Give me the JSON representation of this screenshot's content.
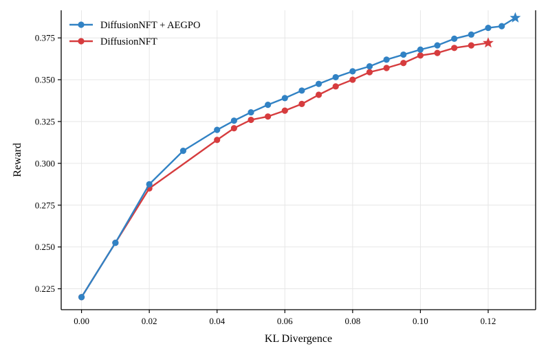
{
  "chart_data": {
    "type": "line",
    "title": "",
    "xlabel": "KL Divergence",
    "ylabel": "Reward",
    "xlim": [
      -0.006,
      0.134
    ],
    "ylim": [
      0.2125,
      0.3915
    ],
    "grid": true,
    "legend_position": "top-left",
    "x_ticks": [
      0.0,
      0.02,
      0.04,
      0.06,
      0.08,
      0.1,
      0.12
    ],
    "x_tick_labels": [
      "0.00",
      "0.02",
      "0.04",
      "0.06",
      "0.08",
      "0.10",
      "0.12"
    ],
    "y_ticks": [
      0.225,
      0.25,
      0.275,
      0.3,
      0.325,
      0.35,
      0.375
    ],
    "y_tick_labels": [
      "0.225",
      "0.250",
      "0.275",
      "0.300",
      "0.325",
      "0.350",
      "0.375"
    ],
    "series": [
      {
        "name": "DiffusionNFT + AEGPO",
        "color": "#3182c4",
        "marker": "circle",
        "end_marker": "star",
        "x": [
          0.0,
          0.01,
          0.02,
          0.03,
          0.04,
          0.045,
          0.05,
          0.055,
          0.06,
          0.065,
          0.07,
          0.075,
          0.08,
          0.085,
          0.09,
          0.095,
          0.1,
          0.105,
          0.11,
          0.115,
          0.12,
          0.124,
          0.128
        ],
        "y": [
          0.22,
          0.2525,
          0.2875,
          0.3075,
          0.32,
          0.3255,
          0.3305,
          0.335,
          0.339,
          0.3435,
          0.3475,
          0.3515,
          0.355,
          0.358,
          0.362,
          0.365,
          0.368,
          0.3705,
          0.3745,
          0.377,
          0.381,
          0.382,
          0.387
        ]
      },
      {
        "name": "DiffusionNFT",
        "color": "#d63c3e",
        "marker": "circle",
        "end_marker": "star",
        "x": [
          0.0,
          0.01,
          0.02,
          0.04,
          0.045,
          0.05,
          0.055,
          0.06,
          0.065,
          0.07,
          0.075,
          0.08,
          0.085,
          0.09,
          0.095,
          0.1,
          0.105,
          0.11,
          0.115,
          0.12
        ],
        "y": [
          0.22,
          0.2525,
          0.285,
          0.314,
          0.321,
          0.326,
          0.328,
          0.3315,
          0.3355,
          0.341,
          0.346,
          0.35,
          0.3545,
          0.357,
          0.36,
          0.3645,
          0.366,
          0.369,
          0.3705,
          0.372
        ]
      }
    ]
  }
}
